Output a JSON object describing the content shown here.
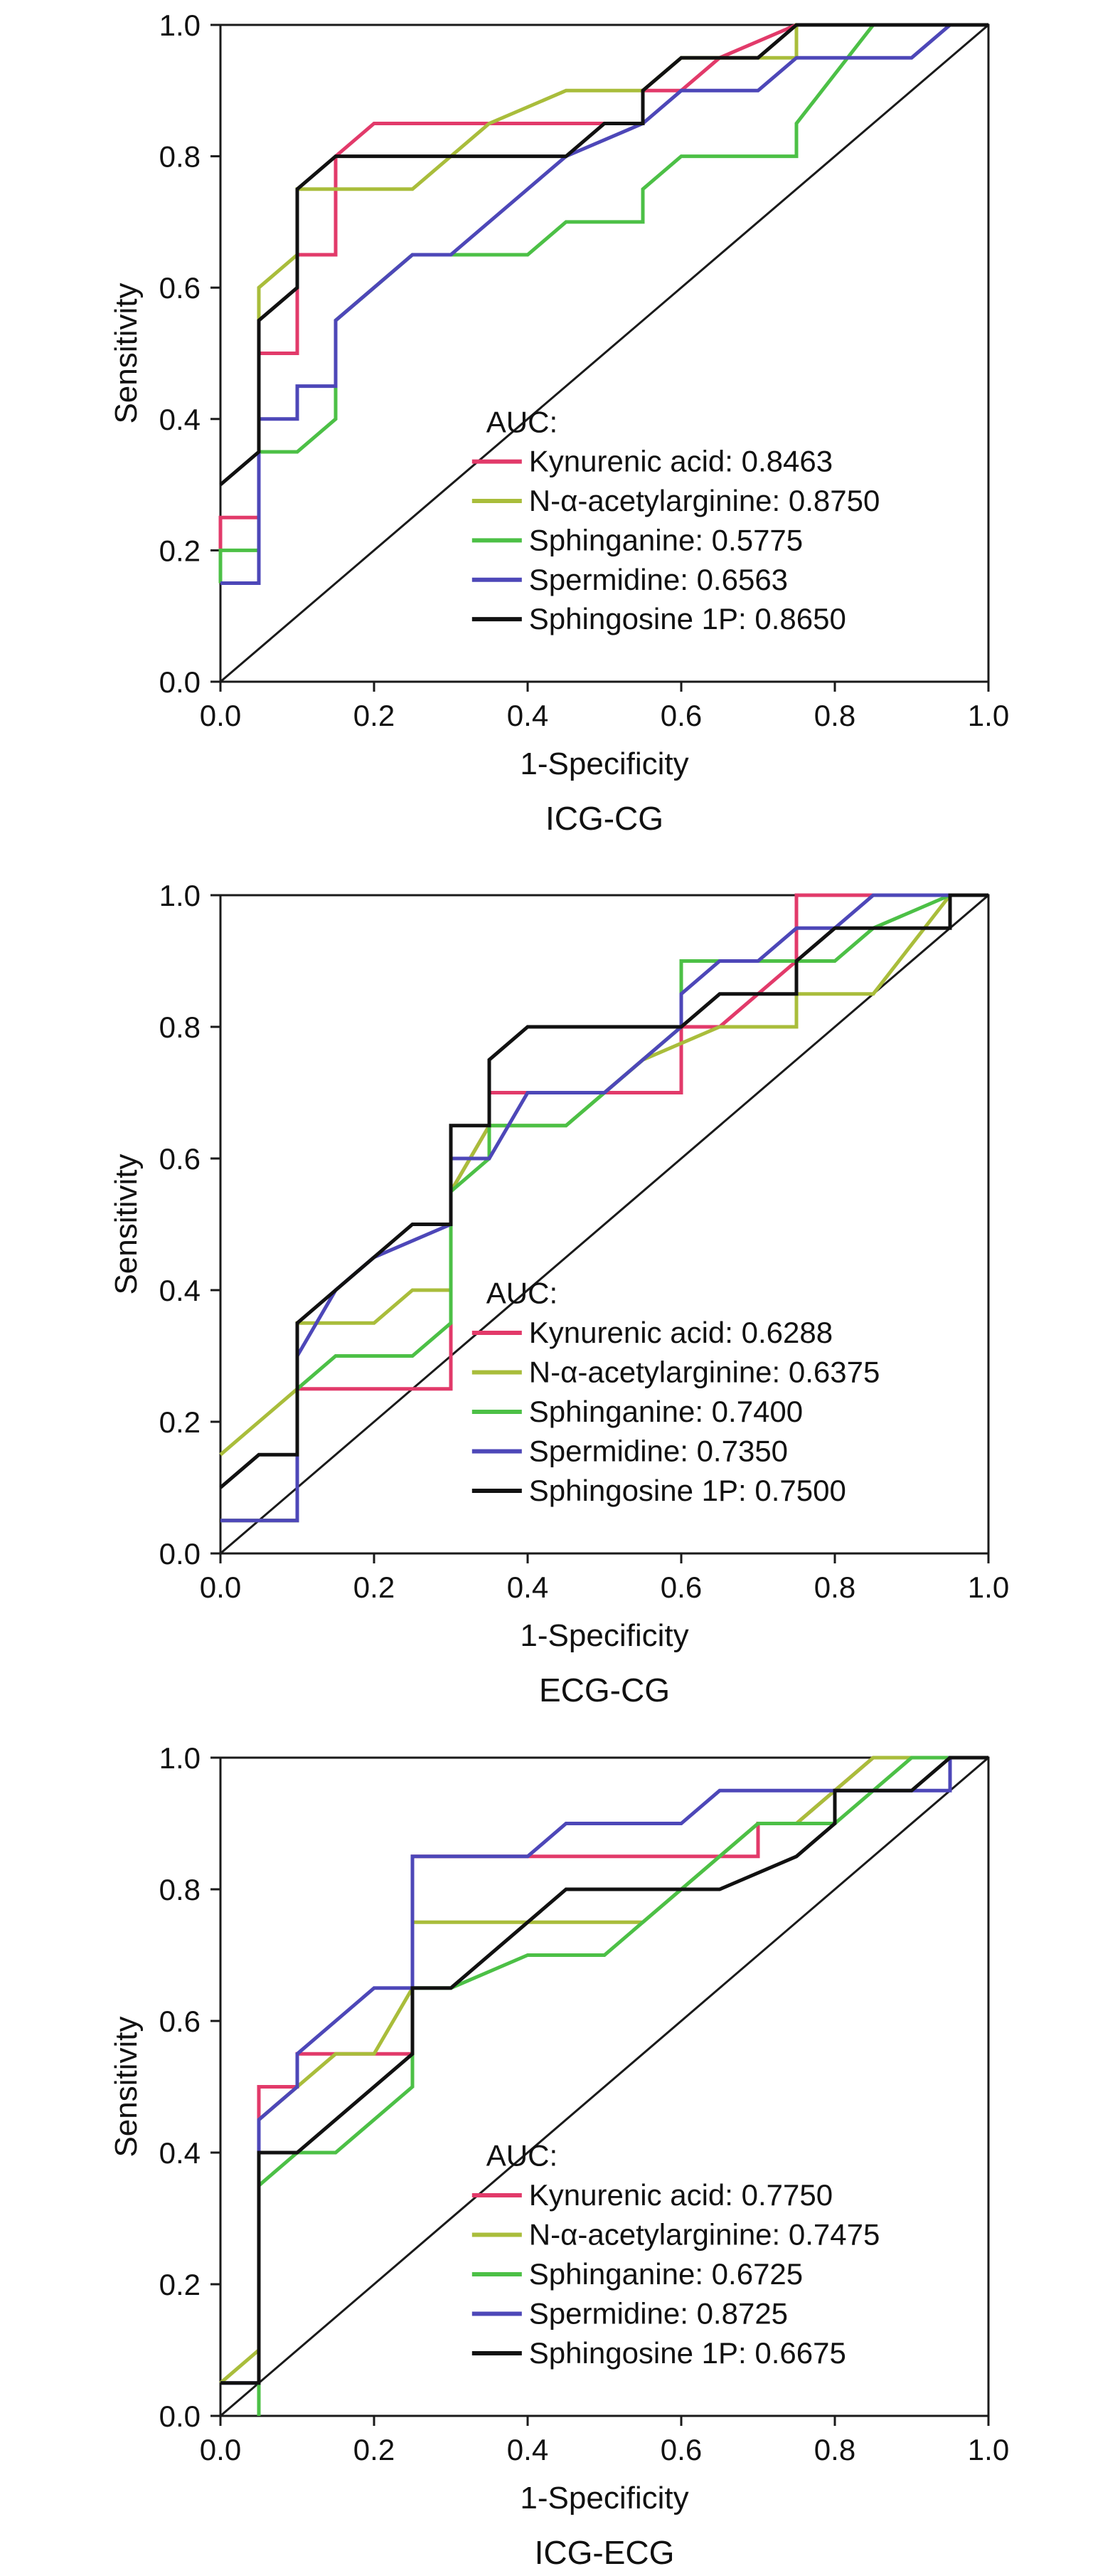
{
  "colors": {
    "Kynurenic acid": "#e23a6a",
    "N-α-acetylarginine": "#a9bd3b",
    "Sphinganine": "#4cc046",
    "Spermidine": "#4d47b8",
    "Sphingosine 1P": "#111111",
    "reference": "#1a1a1a",
    "axes": "#1a1a1a"
  },
  "chart_data": [
    {
      "type": "line",
      "title": "ICG-CG",
      "xlabel": "1-Specificity",
      "ylabel": "Sensitivity",
      "xlim": [
        0,
        1
      ],
      "ylim": [
        0,
        1
      ],
      "xticks": [
        "0.0",
        "0.2",
        "0.4",
        "0.6",
        "0.8",
        "1.0"
      ],
      "yticks": [
        "0.0",
        "0.2",
        "0.4",
        "0.6",
        "0.8",
        "1.0"
      ],
      "grid": false,
      "legend_position": "bottom-right",
      "legend_header": "AUC:",
      "series": [
        {
          "name": "Kynurenic acid",
          "label": "Kynurenic acid: 0.8463",
          "points": [
            [
              0,
              0.15
            ],
            [
              0,
              0.25
            ],
            [
              0.05,
              0.25
            ],
            [
              0.05,
              0.5
            ],
            [
              0.1,
              0.5
            ],
            [
              0.1,
              0.65
            ],
            [
              0.15,
              0.65
            ],
            [
              0.15,
              0.8
            ],
            [
              0.2,
              0.85
            ],
            [
              0.35,
              0.85
            ],
            [
              0.5,
              0.85
            ],
            [
              0.55,
              0.85
            ],
            [
              0.55,
              0.9
            ],
            [
              0.6,
              0.9
            ],
            [
              0.65,
              0.95
            ],
            [
              0.75,
              1.0
            ],
            [
              1.0,
              1.0
            ]
          ]
        },
        {
          "name": "N-α-acetylarginine",
          "label": "N-α-acetylarginine: 0.8750",
          "points": [
            [
              0,
              0.15
            ],
            [
              0.05,
              0.15
            ],
            [
              0.05,
              0.6
            ],
            [
              0.1,
              0.65
            ],
            [
              0.1,
              0.75
            ],
            [
              0.25,
              0.75
            ],
            [
              0.3,
              0.8
            ],
            [
              0.35,
              0.85
            ],
            [
              0.45,
              0.9
            ],
            [
              0.55,
              0.9
            ],
            [
              0.6,
              0.95
            ],
            [
              0.75,
              0.95
            ],
            [
              0.75,
              1.0
            ],
            [
              1.0,
              1.0
            ]
          ]
        },
        {
          "name": "Sphinganine",
          "label": "Sphinganine: 0.5775",
          "points": [
            [
              0,
              0.15
            ],
            [
              0,
              0.2
            ],
            [
              0.05,
              0.2
            ],
            [
              0.05,
              0.35
            ],
            [
              0.1,
              0.35
            ],
            [
              0.15,
              0.4
            ],
            [
              0.15,
              0.55
            ],
            [
              0.25,
              0.65
            ],
            [
              0.4,
              0.65
            ],
            [
              0.45,
              0.7
            ],
            [
              0.55,
              0.7
            ],
            [
              0.55,
              0.75
            ],
            [
              0.6,
              0.8
            ],
            [
              0.75,
              0.8
            ],
            [
              0.75,
              0.85
            ],
            [
              0.85,
              1.0
            ],
            [
              1.0,
              1.0
            ]
          ]
        },
        {
          "name": "Spermidine",
          "label": "Spermidine: 0.6563",
          "points": [
            [
              0,
              0.15
            ],
            [
              0.05,
              0.15
            ],
            [
              0.05,
              0.4
            ],
            [
              0.1,
              0.4
            ],
            [
              0.1,
              0.45
            ],
            [
              0.15,
              0.45
            ],
            [
              0.15,
              0.55
            ],
            [
              0.25,
              0.65
            ],
            [
              0.3,
              0.65
            ],
            [
              0.45,
              0.8
            ],
            [
              0.55,
              0.85
            ],
            [
              0.6,
              0.9
            ],
            [
              0.7,
              0.9
            ],
            [
              0.75,
              0.95
            ],
            [
              0.9,
              0.95
            ],
            [
              0.95,
              1.0
            ],
            [
              1.0,
              1.0
            ]
          ]
        },
        {
          "name": "Sphingosine 1P",
          "label": "Sphingosine 1P: 0.8650",
          "points": [
            [
              0,
              0.3
            ],
            [
              0.05,
              0.35
            ],
            [
              0.05,
              0.55
            ],
            [
              0.1,
              0.6
            ],
            [
              0.1,
              0.75
            ],
            [
              0.15,
              0.8
            ],
            [
              0.45,
              0.8
            ],
            [
              0.5,
              0.85
            ],
            [
              0.55,
              0.85
            ],
            [
              0.55,
              0.9
            ],
            [
              0.6,
              0.95
            ],
            [
              0.7,
              0.95
            ],
            [
              0.75,
              1.0
            ],
            [
              1.0,
              1.0
            ]
          ]
        }
      ]
    },
    {
      "type": "line",
      "title": "ECG-CG",
      "xlabel": "1-Specificity",
      "ylabel": "Sensitivity",
      "xlim": [
        0,
        1
      ],
      "ylim": [
        0,
        1
      ],
      "xticks": [
        "0.0",
        "0.2",
        "0.4",
        "0.6",
        "0.8",
        "1.0"
      ],
      "yticks": [
        "0.0",
        "0.2",
        "0.4",
        "0.6",
        "0.8",
        "1.0"
      ],
      "grid": false,
      "legend_position": "bottom-right",
      "legend_header": "AUC:",
      "series": [
        {
          "name": "Kynurenic acid",
          "label": "Kynurenic acid: 0.6288",
          "points": [
            [
              0,
              0.05
            ],
            [
              0.1,
              0.05
            ],
            [
              0.1,
              0.25
            ],
            [
              0.3,
              0.25
            ],
            [
              0.3,
              0.55
            ],
            [
              0.35,
              0.65
            ],
            [
              0.35,
              0.7
            ],
            [
              0.5,
              0.7
            ],
            [
              0.6,
              0.7
            ],
            [
              0.6,
              0.8
            ],
            [
              0.65,
              0.8
            ],
            [
              0.75,
              0.9
            ],
            [
              0.75,
              1.0
            ],
            [
              1.0,
              1.0
            ]
          ]
        },
        {
          "name": "N-α-acetylarginine",
          "label": "N-α-acetylarginine: 0.6375",
          "points": [
            [
              0,
              0.15
            ],
            [
              0.1,
              0.25
            ],
            [
              0.1,
              0.35
            ],
            [
              0.2,
              0.35
            ],
            [
              0.25,
              0.4
            ],
            [
              0.3,
              0.4
            ],
            [
              0.3,
              0.55
            ],
            [
              0.35,
              0.65
            ],
            [
              0.45,
              0.65
            ],
            [
              0.55,
              0.75
            ],
            [
              0.65,
              0.8
            ],
            [
              0.75,
              0.8
            ],
            [
              0.75,
              0.85
            ],
            [
              0.85,
              0.85
            ],
            [
              0.95,
              1.0
            ],
            [
              1.0,
              1.0
            ]
          ]
        },
        {
          "name": "Sphinganine",
          "label": "Sphinganine: 0.7400",
          "points": [
            [
              0,
              0.05
            ],
            [
              0.1,
              0.05
            ],
            [
              0.1,
              0.25
            ],
            [
              0.15,
              0.3
            ],
            [
              0.25,
              0.3
            ],
            [
              0.3,
              0.35
            ],
            [
              0.3,
              0.55
            ],
            [
              0.35,
              0.6
            ],
            [
              0.35,
              0.65
            ],
            [
              0.45,
              0.65
            ],
            [
              0.6,
              0.8
            ],
            [
              0.6,
              0.9
            ],
            [
              0.65,
              0.9
            ],
            [
              0.75,
              0.9
            ],
            [
              0.8,
              0.9
            ],
            [
              0.85,
              0.95
            ],
            [
              0.95,
              1.0
            ],
            [
              1.0,
              1.0
            ]
          ]
        },
        {
          "name": "Spermidine",
          "label": "Spermidine: 0.7350",
          "points": [
            [
              0,
              0.05
            ],
            [
              0.1,
              0.05
            ],
            [
              0.1,
              0.3
            ],
            [
              0.15,
              0.4
            ],
            [
              0.2,
              0.45
            ],
            [
              0.3,
              0.5
            ],
            [
              0.3,
              0.6
            ],
            [
              0.35,
              0.6
            ],
            [
              0.4,
              0.7
            ],
            [
              0.5,
              0.7
            ],
            [
              0.6,
              0.8
            ],
            [
              0.6,
              0.85
            ],
            [
              0.65,
              0.9
            ],
            [
              0.7,
              0.9
            ],
            [
              0.75,
              0.95
            ],
            [
              0.8,
              0.95
            ],
            [
              0.85,
              1.0
            ],
            [
              1.0,
              1.0
            ]
          ]
        },
        {
          "name": "Sphingosine 1P",
          "label": "Sphingosine 1P: 0.7500",
          "points": [
            [
              0,
              0.1
            ],
            [
              0.05,
              0.15
            ],
            [
              0.1,
              0.15
            ],
            [
              0.1,
              0.35
            ],
            [
              0.15,
              0.4
            ],
            [
              0.25,
              0.5
            ],
            [
              0.3,
              0.5
            ],
            [
              0.3,
              0.65
            ],
            [
              0.35,
              0.65
            ],
            [
              0.35,
              0.75
            ],
            [
              0.4,
              0.8
            ],
            [
              0.6,
              0.8
            ],
            [
              0.65,
              0.85
            ],
            [
              0.75,
              0.85
            ],
            [
              0.75,
              0.9
            ],
            [
              0.8,
              0.95
            ],
            [
              0.95,
              0.95
            ],
            [
              0.95,
              1.0
            ],
            [
              1.0,
              1.0
            ]
          ]
        }
      ]
    },
    {
      "type": "line",
      "title": "ICG-ECG",
      "xlabel": "1-Specificity",
      "ylabel": "Sensitivity",
      "xlim": [
        0,
        1
      ],
      "ylim": [
        0,
        1
      ],
      "xticks": [
        "0.0",
        "0.2",
        "0.4",
        "0.6",
        "0.8",
        "1.0"
      ],
      "yticks": [
        "0.0",
        "0.2",
        "0.4",
        "0.6",
        "0.8",
        "1.0"
      ],
      "grid": false,
      "legend_position": "bottom-right",
      "legend_header": "AUC:",
      "series": [
        {
          "name": "Kynurenic acid",
          "label": "Kynurenic acid: 0.7750",
          "points": [
            [
              0.05,
              0.0
            ],
            [
              0.05,
              0.5
            ],
            [
              0.1,
              0.5
            ],
            [
              0.1,
              0.55
            ],
            [
              0.25,
              0.55
            ],
            [
              0.25,
              0.85
            ],
            [
              0.4,
              0.85
            ],
            [
              0.7,
              0.85
            ],
            [
              0.7,
              0.9
            ],
            [
              0.75,
              0.9
            ],
            [
              0.85,
              1.0
            ],
            [
              1.0,
              1.0
            ]
          ]
        },
        {
          "name": "N-α-acetylarginine",
          "label": "N-α-acetylarginine: 0.7475",
          "points": [
            [
              0,
              0.05
            ],
            [
              0.05,
              0.1
            ],
            [
              0.05,
              0.45
            ],
            [
              0.1,
              0.5
            ],
            [
              0.15,
              0.55
            ],
            [
              0.2,
              0.55
            ],
            [
              0.25,
              0.65
            ],
            [
              0.25,
              0.75
            ],
            [
              0.55,
              0.75
            ],
            [
              0.7,
              0.9
            ],
            [
              0.75,
              0.9
            ],
            [
              0.85,
              1.0
            ],
            [
              1.0,
              1.0
            ]
          ]
        },
        {
          "name": "Sphinganine",
          "label": "Sphinganine: 0.6725",
          "points": [
            [
              0.05,
              0.0
            ],
            [
              0.05,
              0.35
            ],
            [
              0.1,
              0.4
            ],
            [
              0.15,
              0.4
            ],
            [
              0.25,
              0.5
            ],
            [
              0.25,
              0.65
            ],
            [
              0.3,
              0.65
            ],
            [
              0.4,
              0.7
            ],
            [
              0.5,
              0.7
            ],
            [
              0.6,
              0.8
            ],
            [
              0.7,
              0.9
            ],
            [
              0.8,
              0.9
            ],
            [
              0.9,
              1.0
            ],
            [
              1.0,
              1.0
            ]
          ]
        },
        {
          "name": "Spermidine",
          "label": "Spermidine: 0.8725",
          "points": [
            [
              0,
              0.05
            ],
            [
              0.05,
              0.05
            ],
            [
              0.05,
              0.45
            ],
            [
              0.1,
              0.5
            ],
            [
              0.1,
              0.55
            ],
            [
              0.2,
              0.65
            ],
            [
              0.25,
              0.65
            ],
            [
              0.25,
              0.85
            ],
            [
              0.4,
              0.85
            ],
            [
              0.45,
              0.9
            ],
            [
              0.6,
              0.9
            ],
            [
              0.65,
              0.95
            ],
            [
              0.95,
              0.95
            ],
            [
              0.95,
              1.0
            ],
            [
              1.0,
              1.0
            ]
          ]
        },
        {
          "name": "Sphingosine 1P",
          "label": "Sphingosine 1P: 0.6675",
          "points": [
            [
              0,
              0.05
            ],
            [
              0.05,
              0.05
            ],
            [
              0.05,
              0.4
            ],
            [
              0.1,
              0.4
            ],
            [
              0.25,
              0.55
            ],
            [
              0.25,
              0.65
            ],
            [
              0.3,
              0.65
            ],
            [
              0.45,
              0.8
            ],
            [
              0.65,
              0.8
            ],
            [
              0.75,
              0.85
            ],
            [
              0.8,
              0.9
            ],
            [
              0.8,
              0.95
            ],
            [
              0.9,
              0.95
            ],
            [
              0.95,
              1.0
            ],
            [
              1.0,
              1.0
            ]
          ]
        }
      ]
    }
  ]
}
